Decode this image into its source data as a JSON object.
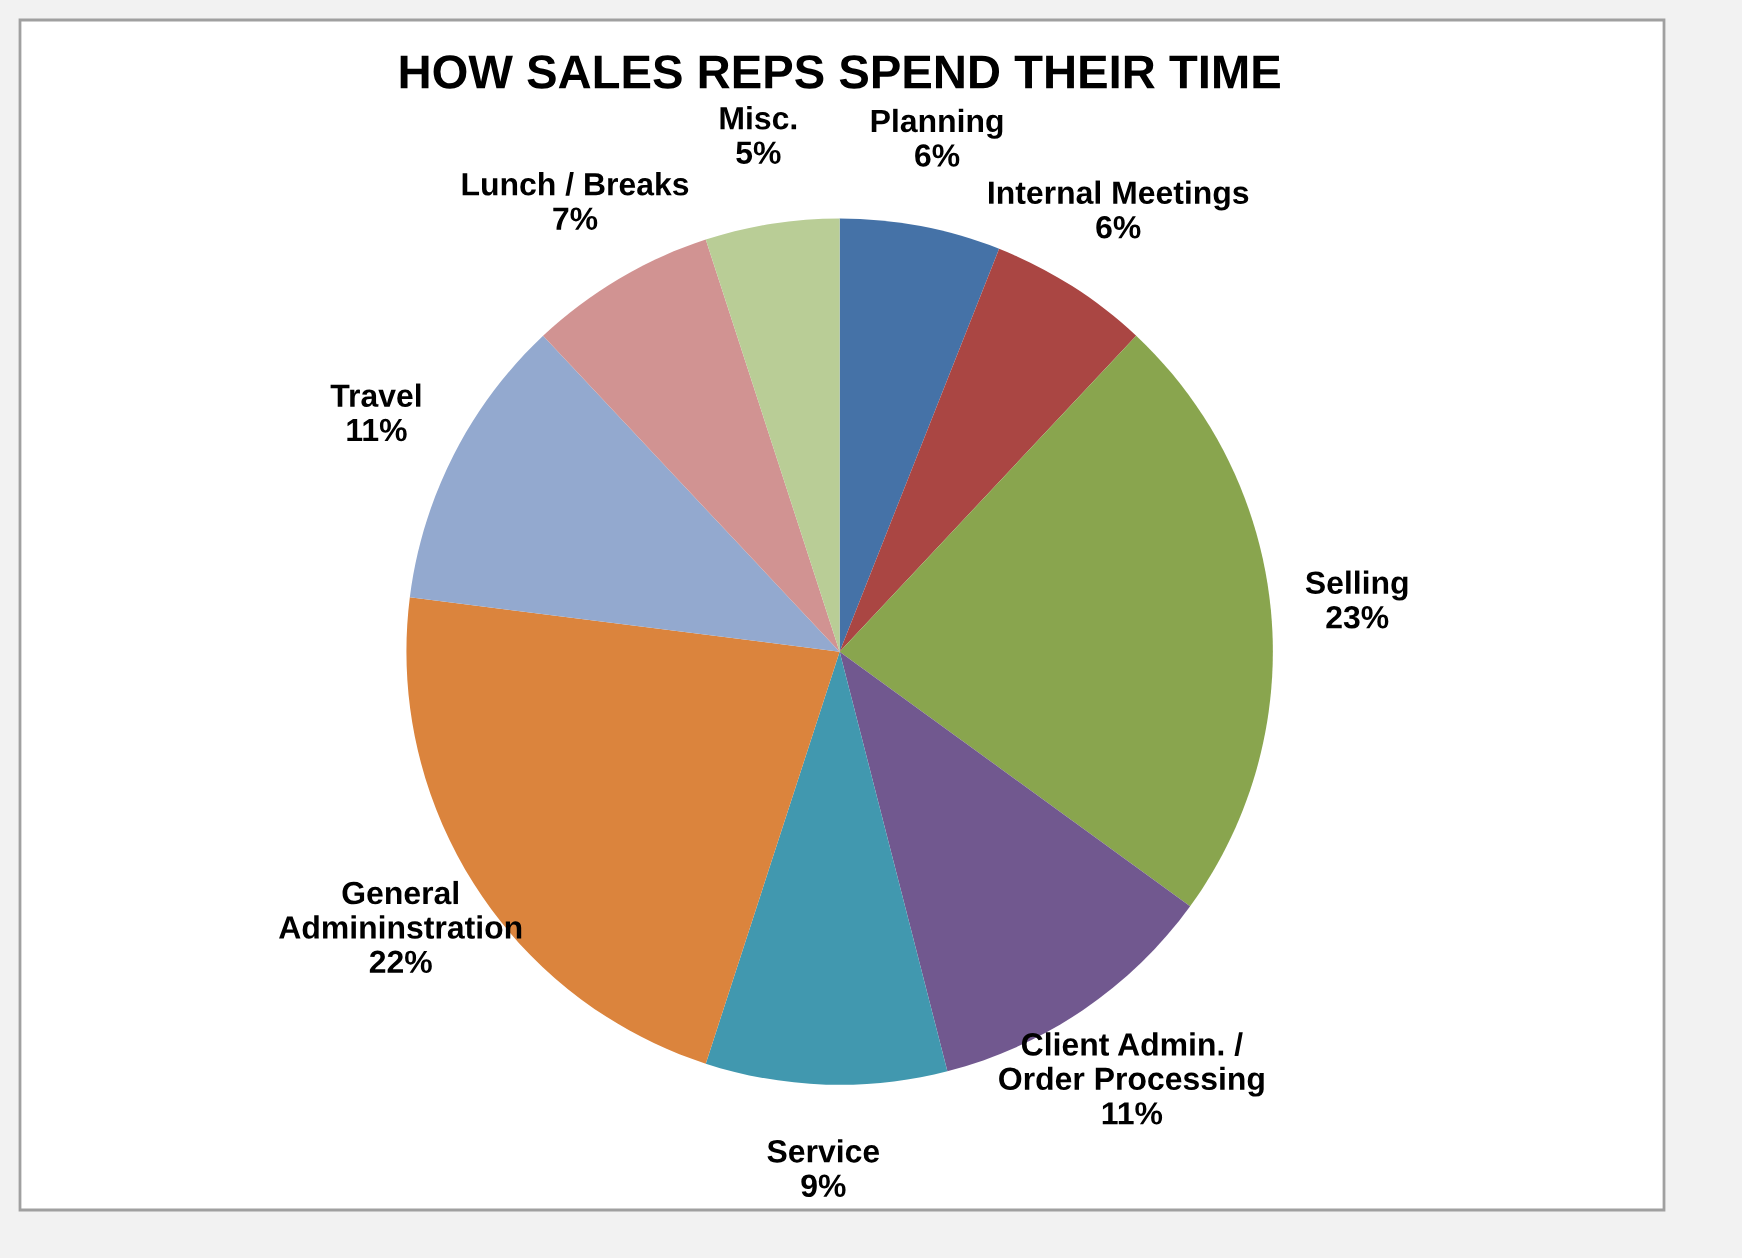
{
  "chart_data": {
    "type": "pie",
    "title": "HOW SALES REPS SPEND THEIR TIME",
    "categories": [
      "Planning",
      "Internal Meetings",
      "Selling",
      "Client Admin. /\nOrder Processing",
      "Service",
      "General\nAdmininstration",
      "Travel",
      "Lunch / Breaks",
      "Misc."
    ],
    "values": [
      6,
      6,
      23,
      11,
      9,
      22,
      11,
      7,
      5
    ],
    "value_labels": [
      "6%",
      "6%",
      "23%",
      "11%",
      "9%",
      "22%",
      "11%",
      "7%",
      "5%"
    ],
    "colors": [
      "#4572a7",
      "#aa4643",
      "#89a54e",
      "#71588f",
      "#4198af",
      "#db843d",
      "#93a9cf",
      "#d19392",
      "#b9cd96"
    ],
    "legend": false
  }
}
